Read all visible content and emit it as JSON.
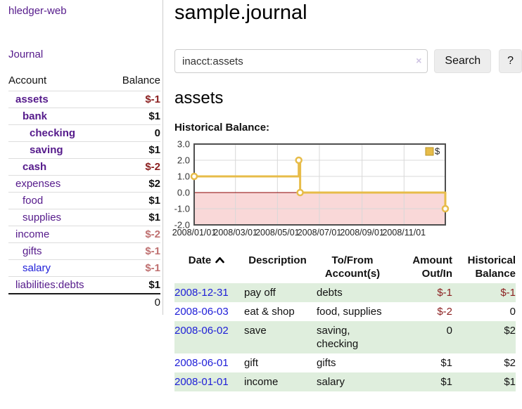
{
  "colors": {
    "accent-link-blue": "#1d1dd8",
    "sidebar-link-purple": "#551a8b",
    "negative-strong": "#8b1f1f",
    "negative-muted": "#bf7070",
    "row-green": "#dfeedd",
    "chart-line-gold": "#e7bc49",
    "chart-legend-border": "#b99427",
    "chart-negative-fill": "#f9d8d8",
    "chart-zero-line": "#8b0000"
  },
  "sidebar": {
    "brand": "hledger-web",
    "nav": [
      {
        "label": "Journal"
      }
    ],
    "accounts_table": {
      "headers": {
        "account": "Account",
        "balance": "Balance"
      },
      "rows": [
        {
          "account": "assets",
          "depth": 1,
          "bold": true,
          "link_color": "purple",
          "balance": "$-1",
          "balance_style": "neg"
        },
        {
          "account": "bank",
          "depth": 2,
          "bold": true,
          "link_color": "purple",
          "balance": "$1",
          "balance_style": "pos"
        },
        {
          "account": "checking",
          "depth": 3,
          "bold": true,
          "link_color": "purple",
          "balance": "0",
          "balance_style": "pos"
        },
        {
          "account": "saving",
          "depth": 3,
          "bold": true,
          "link_color": "purple",
          "balance": "$1",
          "balance_style": "pos"
        },
        {
          "account": "cash",
          "depth": 2,
          "bold": true,
          "link_color": "purple",
          "balance": "$-2",
          "balance_style": "neg"
        },
        {
          "account": "expenses",
          "depth": 1,
          "bold": false,
          "link_color": "purple",
          "balance": "$2",
          "balance_style": "pos"
        },
        {
          "account": "food",
          "depth": 2,
          "bold": false,
          "link_color": "purple",
          "balance": "$1",
          "balance_style": "pos"
        },
        {
          "account": "supplies",
          "depth": 2,
          "bold": false,
          "link_color": "purple",
          "balance": "$1",
          "balance_style": "pos"
        },
        {
          "account": "income",
          "depth": 1,
          "bold": false,
          "link_color": "purple",
          "balance": "$-2",
          "balance_style": "neg-muted"
        },
        {
          "account": "gifts",
          "depth": 2,
          "bold": false,
          "link_color": "purple",
          "balance": "$-1",
          "balance_style": "neg-muted"
        },
        {
          "account": "salary",
          "depth": 2,
          "bold": false,
          "link_color": "blue",
          "balance": "$-1",
          "balance_style": "neg-muted"
        },
        {
          "account": "liabilities:debts",
          "depth": 1,
          "bold": false,
          "link_color": "purple",
          "balance": "$1",
          "balance_style": "pos"
        }
      ],
      "total": "0"
    }
  },
  "main": {
    "title": "sample.journal",
    "search": {
      "value": "inacct:assets",
      "clear_icon": "×",
      "search_button": "Search",
      "help_button": "?"
    },
    "account_heading": "assets",
    "chart_heading": "Historical Balance:"
  },
  "chart_data": {
    "type": "line",
    "step": true,
    "title": "Historical Balance:",
    "series": [
      {
        "name": "$",
        "points": [
          {
            "x": "2008/01/01",
            "y": 1.0
          },
          {
            "x": "2008/06/01",
            "y": 2.0
          },
          {
            "x": "2008/06/03",
            "y": 0.0
          },
          {
            "x": "2008/12/31",
            "y": -1.0
          }
        ]
      }
    ],
    "x_range": [
      "2008/01/01",
      "2008/12/31"
    ],
    "x_ticks": [
      "2008/01/01",
      "2008/03/01",
      "2008/05/01",
      "2008/07/01",
      "2008/09/01",
      "2008/11/01"
    ],
    "y_ticks": [
      "3.0",
      "2.0",
      "1.0",
      "0.0",
      "-1.0",
      "-2.0"
    ],
    "ylim": [
      -2.0,
      3.0
    ],
    "grid": true,
    "legend": {
      "label": "$",
      "position": "top-right"
    },
    "negative_region": true
  },
  "register": {
    "headers": [
      {
        "lines": [
          "Date"
        ],
        "align": "left",
        "sort": "up"
      },
      {
        "lines": [
          "Description"
        ],
        "align": "left"
      },
      {
        "lines": [
          "To/From",
          "Account(s)"
        ],
        "align": "left"
      },
      {
        "lines": [
          "Amount",
          "Out/In"
        ],
        "align": "right"
      },
      {
        "lines": [
          "Historical",
          "Balance"
        ],
        "align": "right"
      }
    ],
    "rows": [
      {
        "date": "2008-12-31",
        "description": "pay off",
        "accounts": "debts",
        "amount": "$-1",
        "amount_style": "neg",
        "balance": "$-1",
        "balance_style": "neg"
      },
      {
        "date": "2008-06-03",
        "description": "eat & shop",
        "accounts": "food, supplies",
        "amount": "$-2",
        "amount_style": "neg",
        "balance": "0",
        "balance_style": "pos"
      },
      {
        "date": "2008-06-02",
        "description": "save",
        "accounts": "saving, checking",
        "amount": "0",
        "amount_style": "pos",
        "balance": "$2",
        "balance_style": "pos"
      },
      {
        "date": "2008-06-01",
        "description": "gift",
        "accounts": "gifts",
        "amount": "$1",
        "amount_style": "pos",
        "balance": "$2",
        "balance_style": "pos"
      },
      {
        "date": "2008-01-01",
        "description": "income",
        "accounts": "salary",
        "amount": "$1",
        "amount_style": "pos",
        "balance": "$1",
        "balance_style": "pos"
      }
    ]
  }
}
